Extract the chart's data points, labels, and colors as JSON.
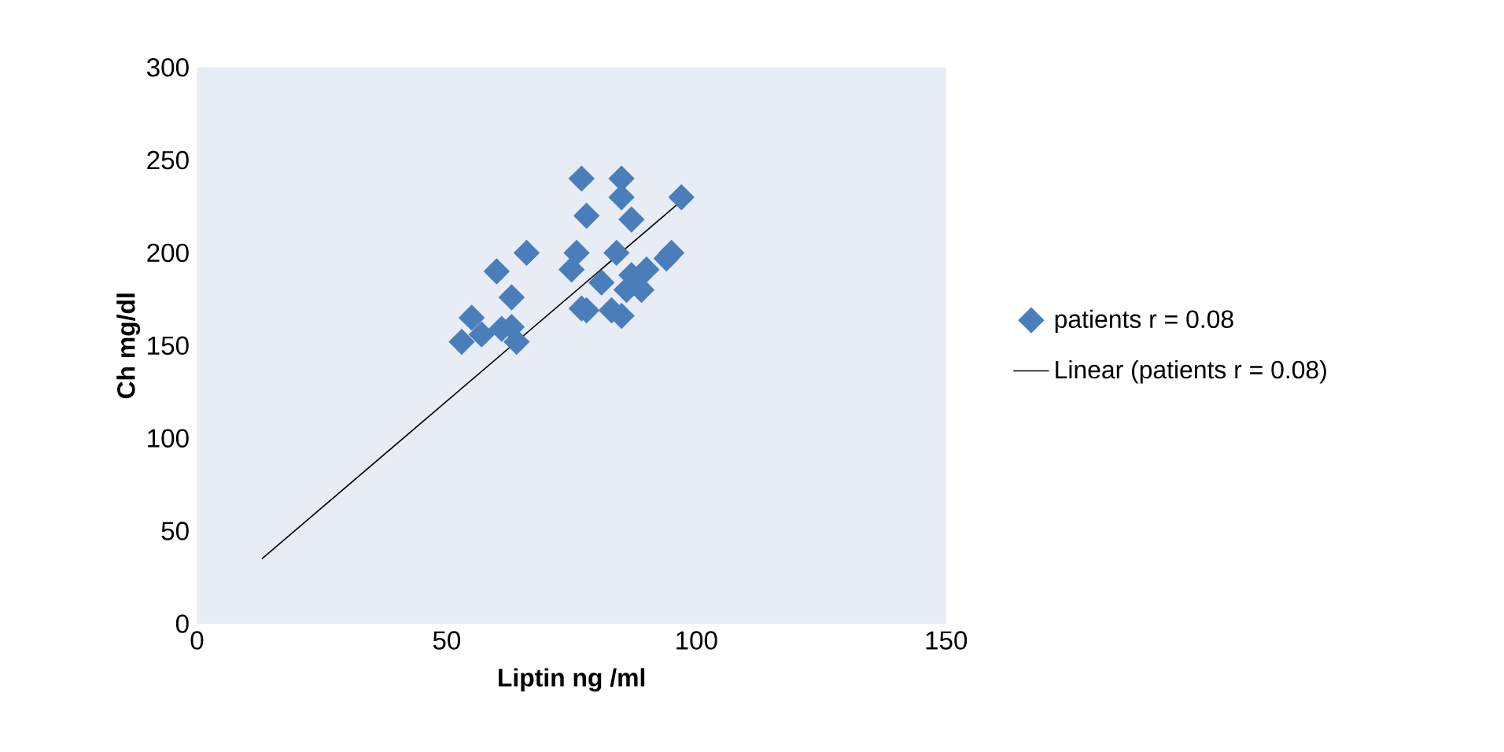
{
  "chart_data": {
    "type": "scatter",
    "xlabel": "Liptin   ng /ml",
    "ylabel": "Ch mg/dl",
    "xlim": [
      0,
      150
    ],
    "xticks": [
      0,
      50,
      100,
      150
    ],
    "ylim": [
      0,
      300
    ],
    "yticks": [
      0,
      50,
      100,
      150,
      200,
      250,
      300
    ],
    "legend": "right",
    "grid": false,
    "series": [
      {
        "name": "patients r = 0.08",
        "marker": "diamond",
        "color": "#4a7ebb",
        "x": [
          77,
          85,
          85,
          97,
          78,
          87,
          66,
          60,
          76,
          84,
          95,
          55,
          53,
          57,
          63,
          63,
          64,
          61,
          77,
          78,
          83,
          85,
          81,
          87,
          90,
          94,
          86,
          75,
          89
        ],
        "values": [
          240,
          240,
          230,
          230,
          220,
          218,
          200,
          190,
          200,
          200,
          200,
          165,
          152,
          156,
          176,
          160,
          152,
          159,
          170,
          169,
          169,
          166,
          184,
          188,
          191,
          197,
          180,
          191,
          180
        ]
      },
      {
        "name": "Linear (patients r = 0.08)",
        "type": "line",
        "line_style": "solid",
        "marker": "none",
        "color": "#000000",
        "x": [
          13,
          97
        ],
        "values": [
          35,
          228
        ]
      }
    ]
  }
}
